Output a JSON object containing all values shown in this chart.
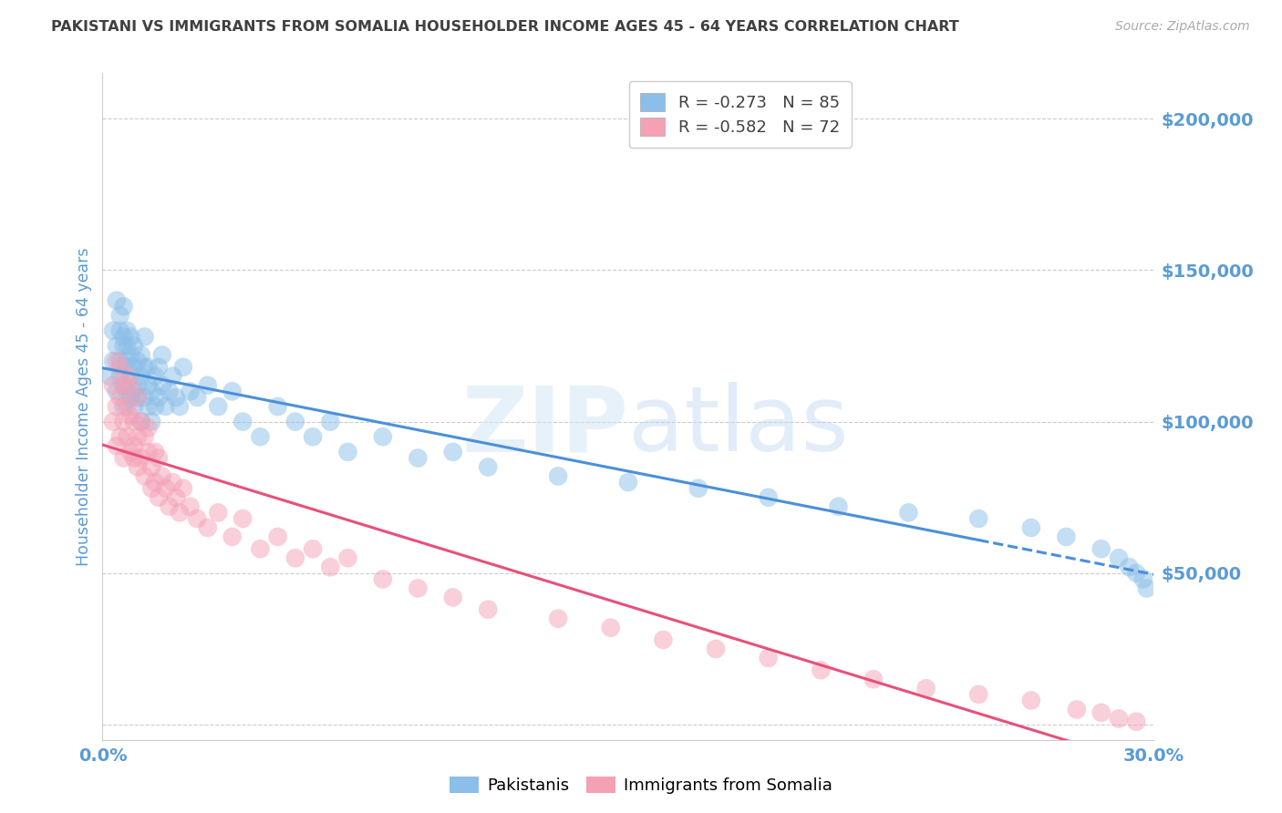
{
  "title": "PAKISTANI VS IMMIGRANTS FROM SOMALIA HOUSEHOLDER INCOME AGES 45 - 64 YEARS CORRELATION CHART",
  "source": "Source: ZipAtlas.com",
  "ylabel": "Householder Income Ages 45 - 64 years",
  "xlim": [
    0.0,
    0.3
  ],
  "ylim": [
    -5000,
    215000
  ],
  "yticks": [
    0,
    50000,
    100000,
    150000,
    200000
  ],
  "ytick_labels": [
    "",
    "$50,000",
    "$100,000",
    "$150,000",
    "$200,000"
  ],
  "xticks": [
    0.0,
    0.05,
    0.1,
    0.15,
    0.2,
    0.25,
    0.3
  ],
  "xtick_labels": [
    "0.0%",
    "",
    "",
    "",
    "",
    "",
    "30.0%"
  ],
  "background_color": "#ffffff",
  "grid_color": "#cccccc",
  "blue_color": "#8bbee8",
  "pink_color": "#f4a0b5",
  "line_blue": "#4a90d9",
  "line_pink": "#e8507a",
  "label_blue": "Pakistanis",
  "label_pink": "Immigrants from Somalia",
  "axis_label_color": "#5b9bd5",
  "title_color": "#404040",
  "pak_R": -0.273,
  "pak_N": 85,
  "som_R": -0.582,
  "som_N": 72,
  "pakistani_x": [
    0.002,
    0.003,
    0.003,
    0.004,
    0.004,
    0.004,
    0.005,
    0.005,
    0.005,
    0.005,
    0.006,
    0.006,
    0.006,
    0.006,
    0.006,
    0.007,
    0.007,
    0.007,
    0.007,
    0.007,
    0.008,
    0.008,
    0.008,
    0.008,
    0.009,
    0.009,
    0.009,
    0.009,
    0.01,
    0.01,
    0.01,
    0.011,
    0.011,
    0.011,
    0.012,
    0.012,
    0.012,
    0.013,
    0.013,
    0.013,
    0.014,
    0.014,
    0.015,
    0.015,
    0.016,
    0.016,
    0.017,
    0.017,
    0.018,
    0.019,
    0.02,
    0.021,
    0.022,
    0.023,
    0.025,
    0.027,
    0.03,
    0.033,
    0.037,
    0.04,
    0.045,
    0.05,
    0.055,
    0.06,
    0.065,
    0.07,
    0.08,
    0.09,
    0.1,
    0.11,
    0.13,
    0.15,
    0.17,
    0.19,
    0.21,
    0.23,
    0.25,
    0.265,
    0.275,
    0.285,
    0.29,
    0.293,
    0.295,
    0.297,
    0.298
  ],
  "pakistani_y": [
    115000,
    130000,
    120000,
    125000,
    140000,
    110000,
    135000,
    120000,
    130000,
    115000,
    125000,
    138000,
    112000,
    128000,
    105000,
    130000,
    118000,
    125000,
    110000,
    120000,
    115000,
    128000,
    108000,
    122000,
    118000,
    110000,
    125000,
    105000,
    120000,
    112000,
    108000,
    115000,
    122000,
    100000,
    118000,
    108000,
    128000,
    112000,
    105000,
    118000,
    110000,
    100000,
    115000,
    105000,
    118000,
    108000,
    122000,
    112000,
    105000,
    110000,
    115000,
    108000,
    105000,
    118000,
    110000,
    108000,
    112000,
    105000,
    110000,
    100000,
    95000,
    105000,
    100000,
    95000,
    100000,
    90000,
    95000,
    88000,
    90000,
    85000,
    82000,
    80000,
    78000,
    75000,
    72000,
    70000,
    68000,
    65000,
    62000,
    58000,
    55000,
    52000,
    50000,
    48000,
    45000
  ],
  "somalia_x": [
    0.003,
    0.003,
    0.004,
    0.004,
    0.004,
    0.005,
    0.005,
    0.005,
    0.006,
    0.006,
    0.006,
    0.007,
    0.007,
    0.007,
    0.008,
    0.008,
    0.008,
    0.009,
    0.009,
    0.009,
    0.01,
    0.01,
    0.01,
    0.011,
    0.011,
    0.012,
    0.012,
    0.013,
    0.013,
    0.014,
    0.014,
    0.015,
    0.015,
    0.016,
    0.016,
    0.017,
    0.018,
    0.019,
    0.02,
    0.021,
    0.022,
    0.023,
    0.025,
    0.027,
    0.03,
    0.033,
    0.037,
    0.04,
    0.045,
    0.05,
    0.055,
    0.06,
    0.065,
    0.07,
    0.08,
    0.09,
    0.1,
    0.11,
    0.13,
    0.145,
    0.16,
    0.175,
    0.19,
    0.205,
    0.22,
    0.235,
    0.25,
    0.265,
    0.278,
    0.285,
    0.29,
    0.295
  ],
  "somalia_y": [
    112000,
    100000,
    120000,
    105000,
    92000,
    108000,
    95000,
    118000,
    100000,
    112000,
    88000,
    105000,
    95000,
    115000,
    90000,
    102000,
    112000,
    88000,
    100000,
    92000,
    95000,
    108000,
    85000,
    100000,
    88000,
    95000,
    82000,
    90000,
    98000,
    85000,
    78000,
    90000,
    80000,
    88000,
    75000,
    82000,
    78000,
    72000,
    80000,
    75000,
    70000,
    78000,
    72000,
    68000,
    65000,
    70000,
    62000,
    68000,
    58000,
    62000,
    55000,
    58000,
    52000,
    55000,
    48000,
    45000,
    42000,
    38000,
    35000,
    32000,
    28000,
    25000,
    22000,
    18000,
    15000,
    12000,
    10000,
    8000,
    5000,
    4000,
    2000,
    1000
  ]
}
